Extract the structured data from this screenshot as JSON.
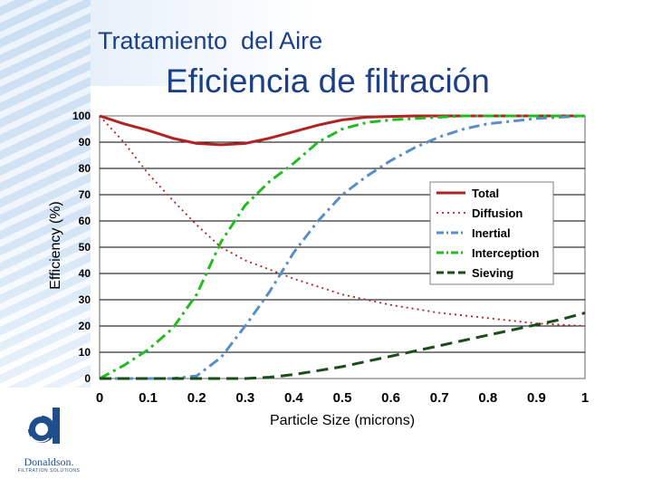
{
  "slide": {
    "title": "Tratamiento  del Aire",
    "subtitle": "Eficiencia de filtración",
    "brand": "Donaldson.",
    "brand_tagline": "FILTRATION SOLUTIONS"
  },
  "chart_data": {
    "type": "line",
    "title": "",
    "xlabel": "Particle Size (microns)",
    "ylabel": "Efficiency (%)",
    "xlim": [
      0,
      1
    ],
    "ylim": [
      0,
      100
    ],
    "grid": true,
    "legend_position": "right",
    "x": [
      0,
      0.05,
      0.1,
      0.15,
      0.2,
      0.25,
      0.3,
      0.35,
      0.4,
      0.45,
      0.5,
      0.55,
      0.6,
      0.65,
      0.7,
      0.75,
      0.8,
      0.85,
      0.9,
      0.95,
      1.0
    ],
    "xticks": [
      "0",
      "0.1",
      "0.2",
      "0.3",
      "0.4",
      "0.5",
      "0.6",
      "0.7",
      "0.8",
      "0.9",
      "1"
    ],
    "yticks": [
      "0",
      "10",
      "20",
      "30",
      "40",
      "50",
      "60",
      "70",
      "80",
      "90",
      "100"
    ],
    "series": [
      {
        "name": "Total",
        "color": "#b22222",
        "dash": "solid",
        "values": [
          100,
          97,
          94.5,
          91.5,
          89.5,
          89,
          89.5,
          91.5,
          94,
          96.5,
          98.5,
          99.5,
          99.8,
          100,
          100,
          100,
          100,
          100,
          100,
          100,
          100
        ]
      },
      {
        "name": "Diffusion",
        "color": "#b22222",
        "dash": "dotted",
        "values": [
          100,
          90,
          78,
          68,
          58.5,
          50,
          45,
          41.5,
          38,
          35,
          32,
          30,
          28,
          26.5,
          25,
          24,
          23,
          22,
          21,
          20.5,
          20
        ]
      },
      {
        "name": "Inertial",
        "color": "#5b8ec9",
        "dash": "dashdot",
        "values": [
          0,
          0,
          0,
          0,
          1,
          8,
          20,
          33,
          48,
          60,
          70,
          77,
          83,
          88,
          92,
          95,
          97,
          98,
          99,
          99.5,
          100
        ]
      },
      {
        "name": "Interception",
        "color": "#22bb22",
        "dash": "dashdot",
        "values": [
          0,
          5,
          11,
          19,
          32,
          52,
          66,
          75,
          82,
          90,
          95,
          97.5,
          98.5,
          99,
          99.5,
          100,
          100,
          100,
          100,
          100,
          100
        ]
      },
      {
        "name": "Sieving",
        "color": "#1a4d1a",
        "dash": "dashed",
        "values": [
          0,
          0,
          0,
          0,
          0,
          0,
          0,
          0.5,
          1.5,
          3,
          4.5,
          6.5,
          8.5,
          10.5,
          12.5,
          14.5,
          16.5,
          18.5,
          20.5,
          22.5,
          25
        ]
      }
    ]
  }
}
